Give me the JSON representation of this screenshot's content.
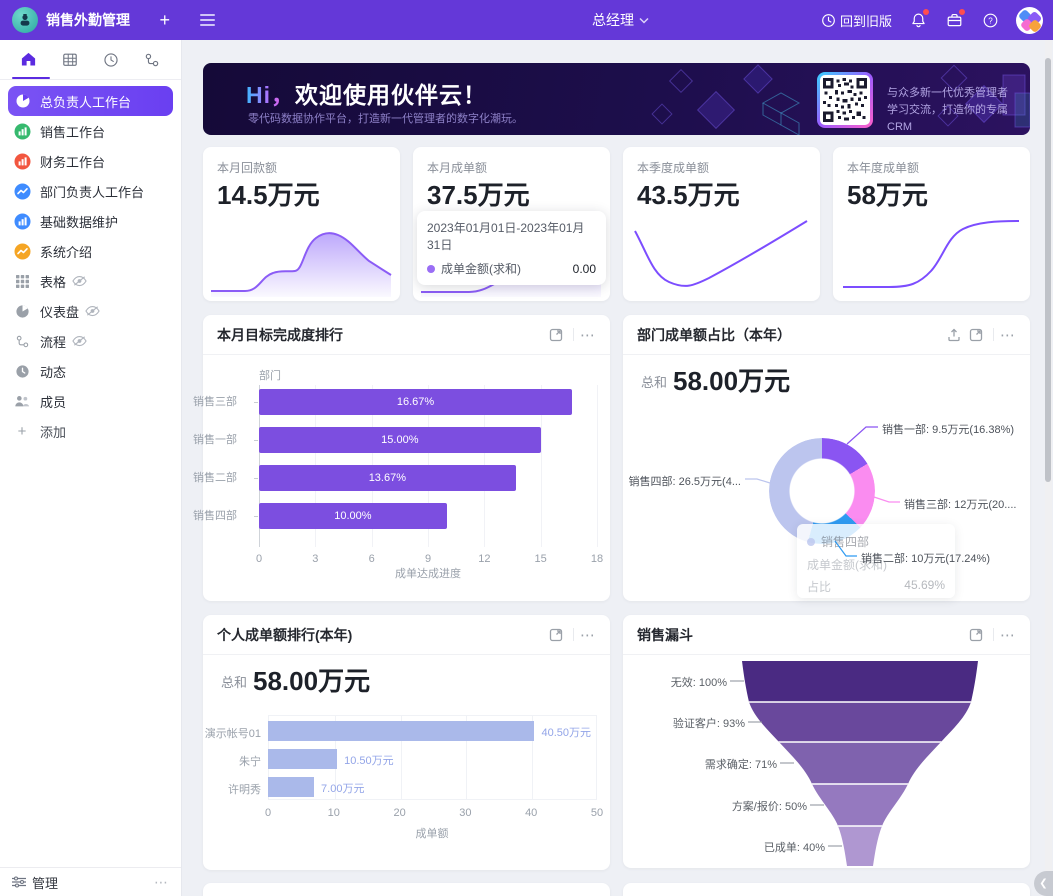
{
  "icons": {
    "more": "⋯",
    "collapse": "❮",
    "plus": "+",
    "add_plus": "+"
  },
  "topbar": {
    "app_title": "销售外勤管理",
    "role_selector": "总经理",
    "back_to_old": "回到旧版"
  },
  "sidebar": {
    "items": [
      {
        "label": "总负责人工作台"
      },
      {
        "label": "销售工作台"
      },
      {
        "label": "财务工作台"
      },
      {
        "label": "部门负责人工作台"
      },
      {
        "label": "基础数据维护"
      },
      {
        "label": "系统介绍"
      },
      {
        "label": "表格",
        "hidden": true
      },
      {
        "label": "仪表盘",
        "hidden": true
      },
      {
        "label": "流程",
        "hidden": true
      },
      {
        "label": "动态"
      },
      {
        "label": "成员"
      }
    ],
    "add_label": "添加",
    "manage_label": "管理"
  },
  "banner": {
    "title_hi": "Hi，",
    "title_rest": "欢迎使用伙伴云！",
    "subtitle": "零代码数据协作平台，打造新一代管理者的数字化潮玩。",
    "qr_caption_line1": "与众多新一代优秀管理者",
    "qr_caption_line2": "学习交流，打造你的专属CRM"
  },
  "kpis": [
    {
      "label": "本月回款额",
      "value": "14.5万元"
    },
    {
      "label": "本月成单额",
      "value": "37.5万元",
      "tooltip": {
        "date_range": "2023年01月01日-2023年01月31日",
        "series": "成单金额(求和)",
        "value": "0.00"
      }
    },
    {
      "label": "本季度成单额",
      "value": "43.5万元"
    },
    {
      "label": "本年度成单额",
      "value": "58万元"
    }
  ],
  "cards": {
    "goal_rank": {
      "title": "本月目标完成度排行"
    },
    "dept_share": {
      "title": "部门成单额占比（本年）",
      "total_label": "总和",
      "total_value": "58.00万元",
      "tooltip": {
        "title": "销售四部",
        "row1_label": "成单金额(求和)",
        "row2_label": "占比",
        "row2_value": "45.69%"
      }
    },
    "personal_rank": {
      "title": "个人成单额排行(本年)",
      "total_label": "总和",
      "total_value": "58.00万元"
    },
    "funnel": {
      "title": "销售漏斗"
    }
  },
  "chart_data": [
    {
      "id": "goal_rank",
      "type": "bar",
      "orientation": "horizontal",
      "title": "本月目标完成度排行",
      "ylabel": "部门",
      "xlabel": "成单达成进度",
      "categories": [
        "销售三部",
        "销售一部",
        "销售二部",
        "销售四部"
      ],
      "values": [
        16.67,
        15.0,
        13.67,
        10.0
      ],
      "bar_labels": [
        "16.67%",
        "15.00%",
        "13.67%",
        "10.00%"
      ],
      "xlim": [
        0,
        18
      ],
      "xticks": [
        0,
        3,
        6,
        9,
        12,
        15,
        18
      ],
      "bar_color": "#7c4ee0",
      "grid": true,
      "legend": "none"
    },
    {
      "id": "dept_share",
      "type": "pie",
      "subtype": "donut",
      "title": "部门成单额占比（本年）",
      "total_label": "总和",
      "total_value": "58.00万元",
      "segments": [
        {
          "name": "销售一部",
          "value_wan": 9.5,
          "pct": 16.38,
          "color": "#8a55f2",
          "label": "销售一部: 9.5万元(16.38%)"
        },
        {
          "name": "销售三部",
          "value_wan": 12,
          "pct": 20.69,
          "color": "#fa8cf0",
          "label": "销售三部: 12万元(20...."
        },
        {
          "name": "销售二部",
          "value_wan": 10,
          "pct": 17.24,
          "color": "#2f9bf2",
          "label": "销售二部: 10万元(17.24%)"
        },
        {
          "name": "销售四部",
          "value_wan": 26.5,
          "pct": 45.69,
          "color": "#bcc5ee",
          "label": "销售四部: 26.5万元(4..."
        }
      ],
      "tooltip": {
        "title": "销售四部",
        "row1_label": "成单金额(求和)",
        "row2_label": "占比",
        "row2_value": "45.69%"
      }
    },
    {
      "id": "personal_rank",
      "type": "bar",
      "orientation": "horizontal",
      "title": "个人成单额排行(本年)",
      "xlabel": "成单额",
      "categories": [
        "演示帐号01",
        "朱宁",
        "许明秀"
      ],
      "values": [
        40.5,
        10.5,
        7.0
      ],
      "bar_labels": [
        "40.50万元",
        "10.50万元",
        "7.00万元"
      ],
      "xlim": [
        0,
        50
      ],
      "xticks": [
        0,
        10,
        20,
        30,
        40,
        50
      ],
      "bar_color": "#aab9ea",
      "grid": true,
      "legend": "none"
    },
    {
      "id": "funnel",
      "type": "funnel",
      "title": "销售漏斗",
      "stages": [
        {
          "name": "无效",
          "pct": 100,
          "label": "无效: 100%",
          "color": "#4a2a82"
        },
        {
          "name": "验证客户",
          "pct": 93,
          "label": "验证客户: 93%",
          "color": "#69489c"
        },
        {
          "name": "需求确定",
          "pct": 71,
          "label": "需求确定: 71%",
          "color": "#7f62ae"
        },
        {
          "name": "方案/报价",
          "pct": 50,
          "label": "方案/报价: 50%",
          "color": "#9579bf"
        },
        {
          "name": "已成单",
          "pct": 40,
          "label": "已成单: 40%",
          "color": "#af97d1"
        }
      ]
    }
  ]
}
